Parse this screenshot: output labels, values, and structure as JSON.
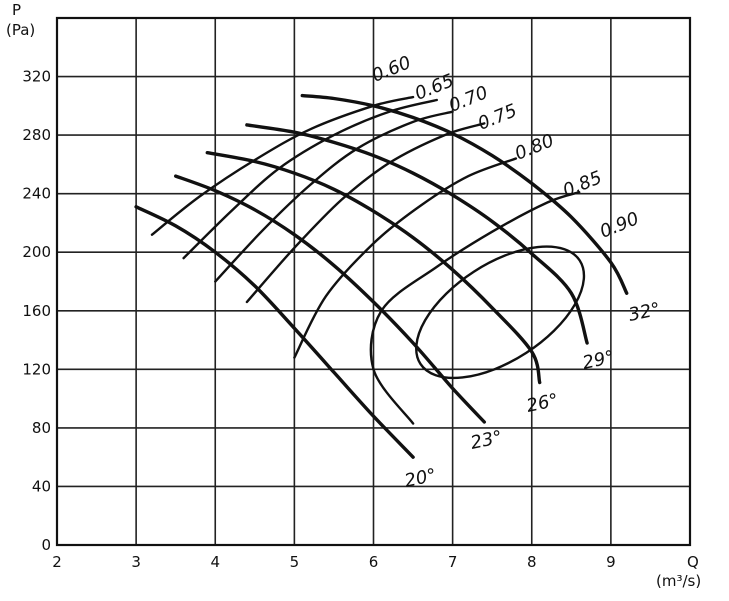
{
  "chart_data": {
    "type": "line",
    "title": "",
    "xlabel": "Q",
    "xunit": "(m³/s)",
    "ylabel": "P",
    "yunit": "(Pa)",
    "xlim": [
      2,
      10
    ],
    "ylim": [
      0,
      360
    ],
    "xticks": [
      2,
      3,
      4,
      5,
      6,
      7,
      8,
      9
    ],
    "yticks": [
      0,
      40,
      80,
      120,
      160,
      200,
      240,
      280,
      320
    ],
    "grid": true,
    "blade_angle_curves": [
      {
        "name": "20°",
        "points": [
          [
            3.0,
            231
          ],
          [
            3.5,
            218
          ],
          [
            4.0,
            200
          ],
          [
            4.5,
            177
          ],
          [
            5.0,
            148
          ],
          [
            5.5,
            118
          ],
          [
            6.0,
            88
          ],
          [
            6.5,
            60
          ]
        ]
      },
      {
        "name": "23°",
        "points": [
          [
            3.5,
            252
          ],
          [
            4.0,
            242
          ],
          [
            4.5,
            229
          ],
          [
            5.0,
            212
          ],
          [
            5.5,
            191
          ],
          [
            6.0,
            166
          ],
          [
            6.5,
            138
          ],
          [
            7.0,
            107
          ],
          [
            7.4,
            84
          ]
        ]
      },
      {
        "name": "26°",
        "points": [
          [
            3.9,
            268
          ],
          [
            4.5,
            262
          ],
          [
            5.0,
            254
          ],
          [
            5.5,
            243
          ],
          [
            6.0,
            228
          ],
          [
            6.5,
            210
          ],
          [
            7.0,
            188
          ],
          [
            7.5,
            162
          ],
          [
            8.0,
            132
          ],
          [
            8.1,
            111
          ]
        ]
      },
      {
        "name": "29°",
        "points": [
          [
            4.4,
            287
          ],
          [
            5.0,
            282
          ],
          [
            5.5,
            275
          ],
          [
            6.0,
            266
          ],
          [
            6.5,
            254
          ],
          [
            7.0,
            239
          ],
          [
            7.5,
            221
          ],
          [
            8.0,
            199
          ],
          [
            8.5,
            172
          ],
          [
            8.7,
            138
          ]
        ]
      },
      {
        "name": "32°",
        "points": [
          [
            5.1,
            307
          ],
          [
            5.5,
            305
          ],
          [
            6.0,
            300
          ],
          [
            6.5,
            292
          ],
          [
            7.0,
            281
          ],
          [
            7.5,
            266
          ],
          [
            8.0,
            247
          ],
          [
            8.5,
            224
          ],
          [
            9.0,
            193
          ],
          [
            9.2,
            172
          ]
        ]
      }
    ],
    "efficiency_curves": [
      {
        "name": "0.60",
        "points": [
          [
            3.2,
            212
          ],
          [
            3.8,
            238
          ],
          [
            4.5,
            263
          ],
          [
            5.2,
            284
          ],
          [
            6.0,
            300
          ],
          [
            6.5,
            306
          ]
        ]
      },
      {
        "name": "0.65",
        "points": [
          [
            3.6,
            196
          ],
          [
            4.2,
            228
          ],
          [
            4.8,
            257
          ],
          [
            5.5,
            280
          ],
          [
            6.2,
            296
          ],
          [
            6.8,
            304
          ]
        ]
      },
      {
        "name": "0.70",
        "points": [
          [
            4.0,
            180
          ],
          [
            4.6,
            215
          ],
          [
            5.2,
            246
          ],
          [
            5.8,
            271
          ],
          [
            6.5,
            289
          ],
          [
            7.0,
            296
          ]
        ]
      },
      {
        "name": "0.75",
        "points": [
          [
            4.4,
            166
          ],
          [
            5.0,
            203
          ],
          [
            5.6,
            236
          ],
          [
            6.2,
            261
          ],
          [
            6.9,
            280
          ],
          [
            7.4,
            288
          ]
        ]
      },
      {
        "name": "0.80",
        "points": [
          [
            5.0,
            128
          ],
          [
            5.4,
            170
          ],
          [
            6.0,
            206
          ],
          [
            6.6,
            232
          ],
          [
            7.2,
            252
          ],
          [
            7.8,
            264
          ]
        ]
      },
      {
        "name": "0.85",
        "points": [
          [
            6.5,
            83
          ],
          [
            6.0,
            120
          ],
          [
            6.1,
            160
          ],
          [
            6.8,
            190
          ],
          [
            7.5,
            214
          ],
          [
            8.2,
            234
          ],
          [
            8.6,
            241
          ]
        ]
      },
      {
        "name": "0.90",
        "ellipse": {
          "cx": 7.6,
          "cy": 159,
          "rq": 1.2,
          "rp": 33,
          "tilt_deg": -33
        }
      }
    ]
  }
}
